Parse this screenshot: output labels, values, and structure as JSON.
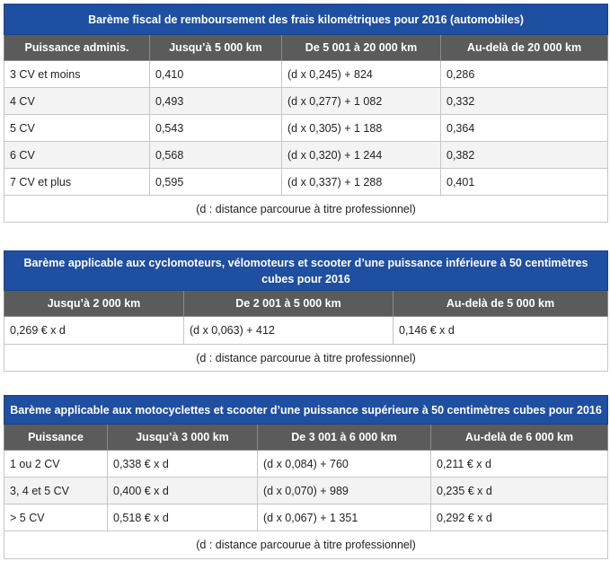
{
  "table1": {
    "title": "Barème fiscal de remboursement des frais kilométriques pour 2016 (automobiles)",
    "headers": [
      "Puissance adminis.",
      "Jusqu’à 5 000 km",
      "De 5 001 à 20 000 km",
      "Au-delà de 20 000 km"
    ],
    "rows": [
      [
        "3 CV et moins",
        "0,410",
        "(d x 0,245) + 824",
        "0,286"
      ],
      [
        "4 CV",
        "0,493",
        "(d x 0,277) + 1 082",
        "0,332"
      ],
      [
        "5 CV",
        "0,543",
        "(d x 0,305) + 1 188",
        "0,364"
      ],
      [
        "6 CV",
        "0,568",
        "(d x 0,320) + 1 244",
        "0,382"
      ],
      [
        "7 CV et plus",
        "0,595",
        "(d x 0,337) + 1 288",
        "0,401"
      ]
    ],
    "note": "(d : distance parcourue à titre professionnel)"
  },
  "table2": {
    "title": "Barème applicable aux cyclomoteurs, vélomoteurs et scooter d’une puissance inférieure à 50 centimètres cubes pour 2016",
    "headers": [
      "Jusqu’à 2 000 km",
      "De 2 001 à 5 000 km",
      "Au-delà de 5 000 km"
    ],
    "rows": [
      [
        "0,269 € x d",
        "(d x 0,063) + 412",
        "0,146 € x d"
      ]
    ],
    "note": "(d : distance parcourue à titre professionnel)"
  },
  "table3": {
    "title": "Barème applicable aux motocyclettes et scooter d’une puissance supérieure à 50 centimètres cubes pour 2016",
    "headers": [
      "Puissance",
      "Jusqu’à 3 000 km",
      "De 3 001 à 6 000 km",
      "Au-delà de 6 000 km"
    ],
    "rows": [
      [
        "1 ou 2 CV",
        "0,338 € x d",
        "(d x 0,084) + 760",
        "0,211 € x d"
      ],
      [
        "3, 4 et 5 CV",
        "0,400 € x d",
        "(d x 0,070) + 989",
        "0,235 € x d"
      ],
      [
        "> 5 CV",
        "0,518 € x d",
        "(d x 0,067) + 1 351",
        "0,292 € x d"
      ]
    ],
    "note": "(d : distance parcourue à titre professionnel)"
  }
}
